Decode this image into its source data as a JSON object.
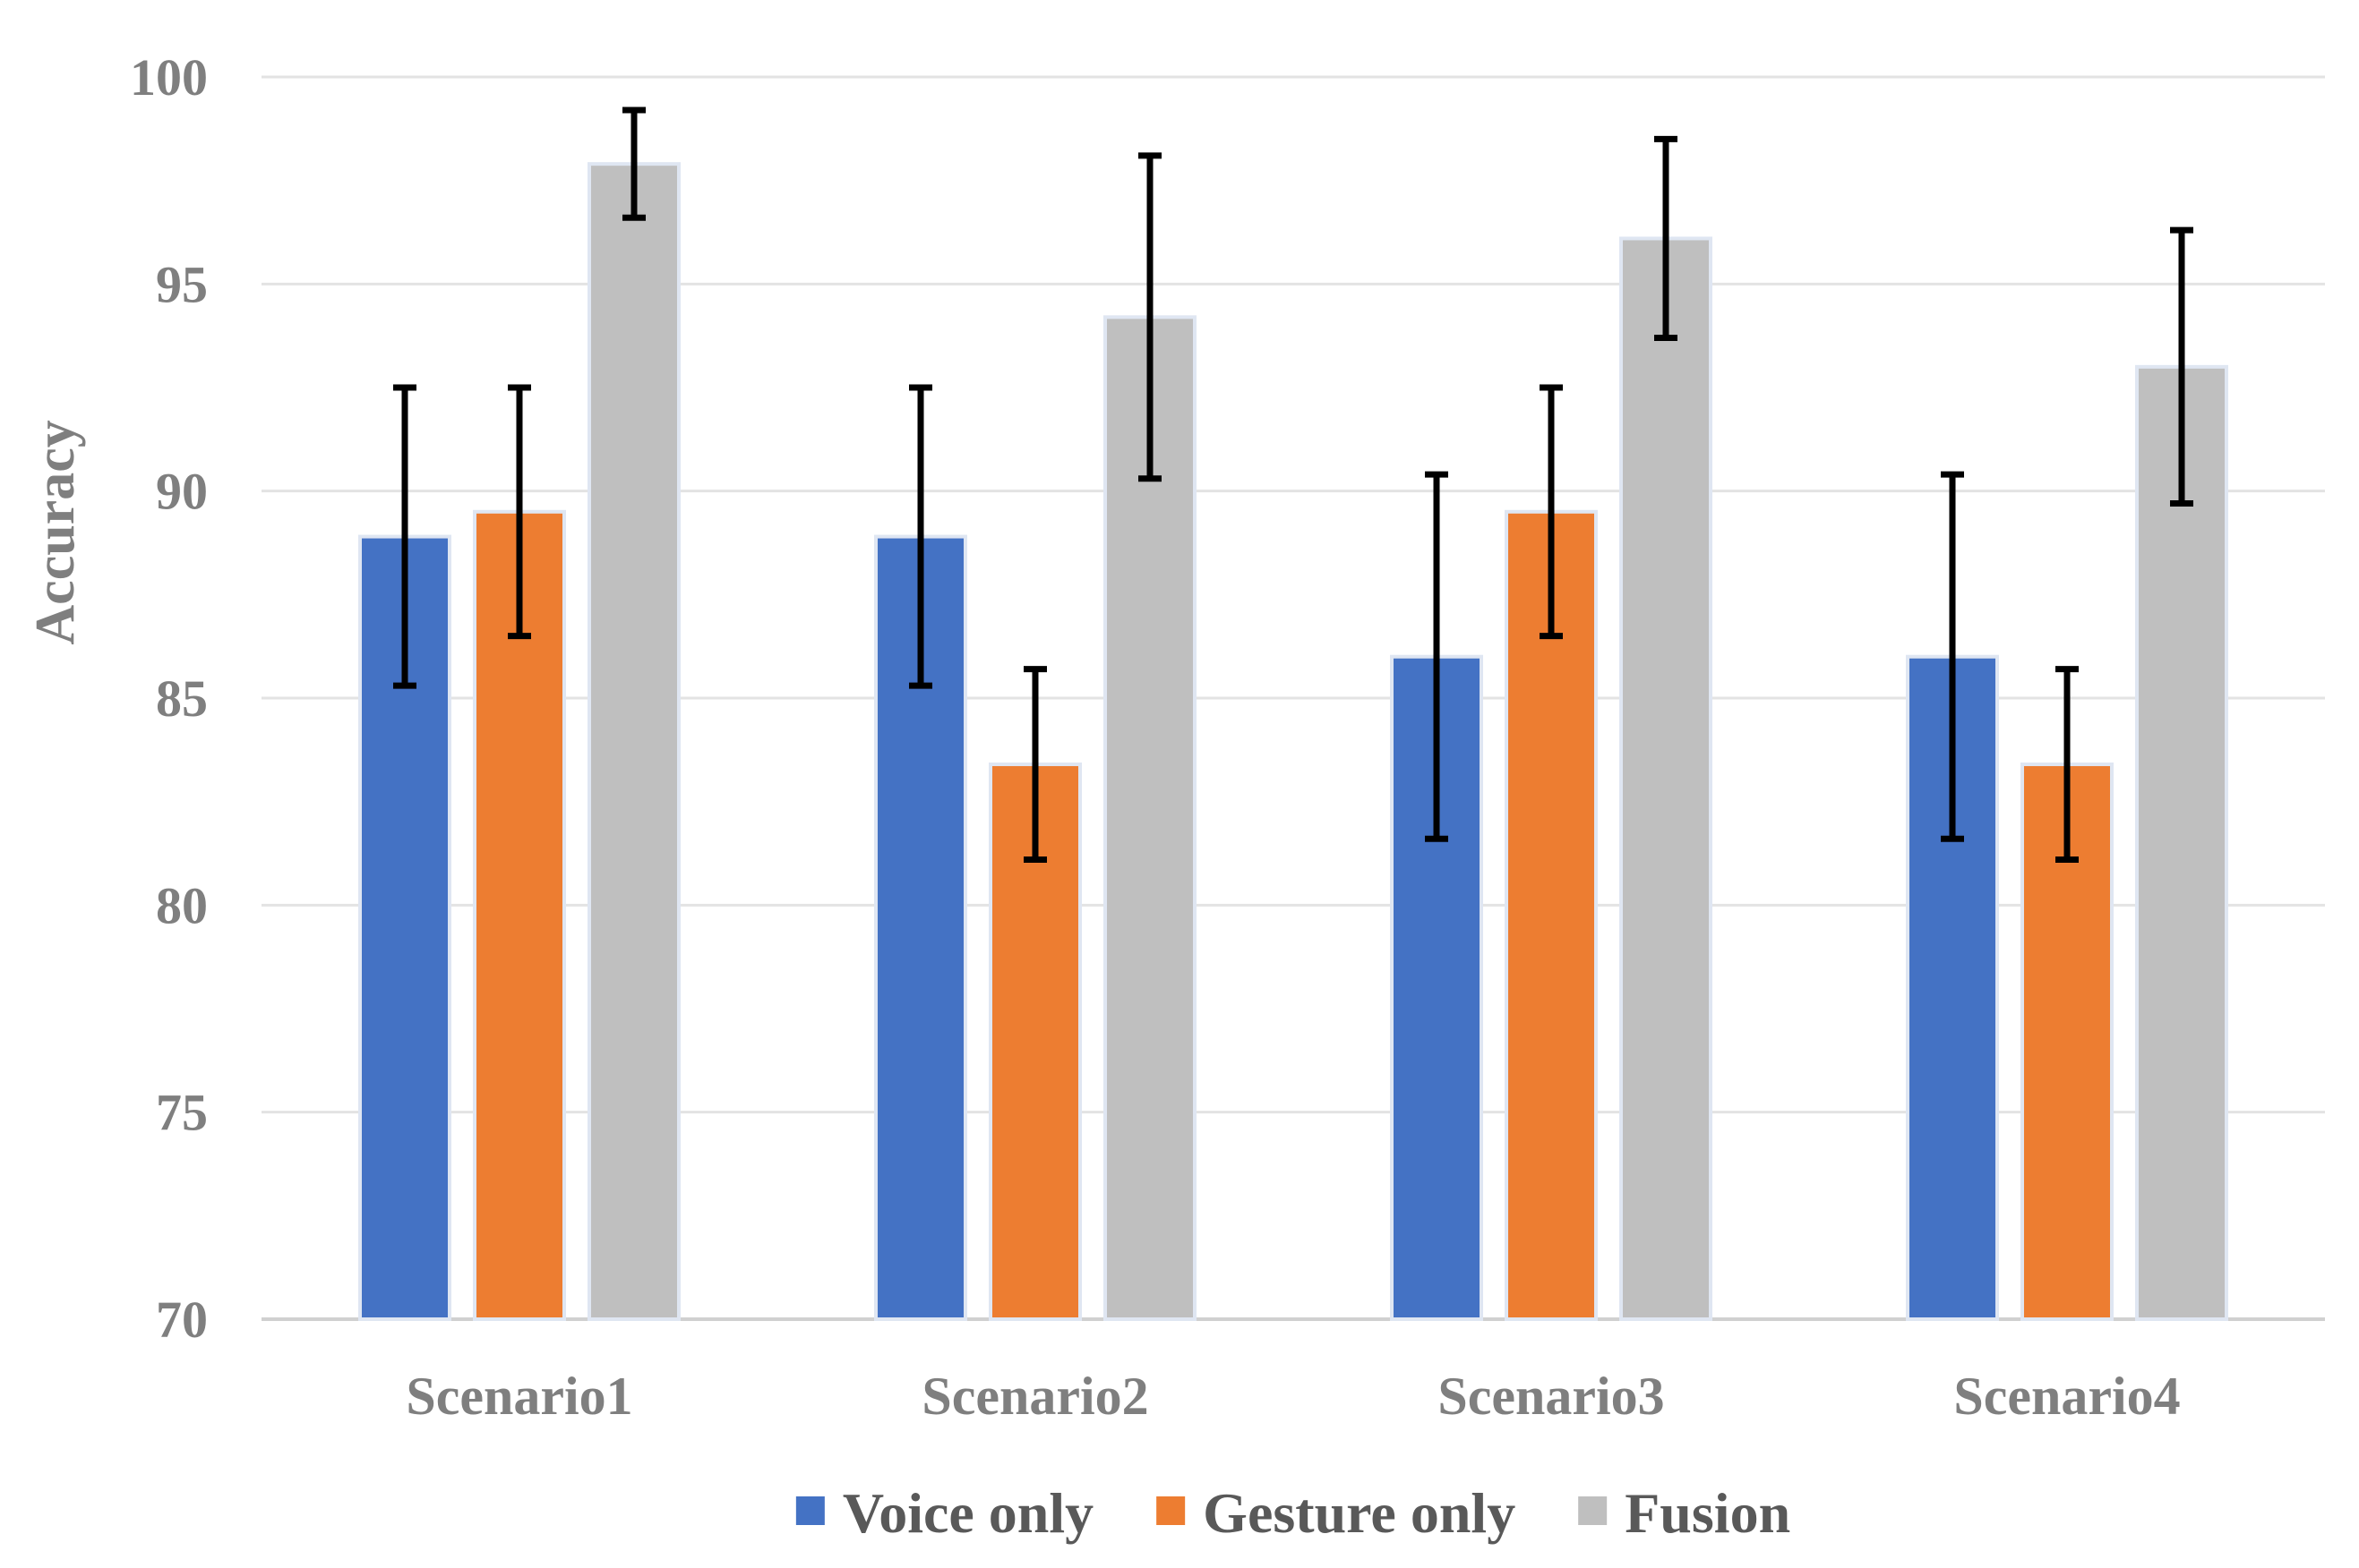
{
  "chart_data": {
    "type": "bar",
    "title": "",
    "xlabel": "",
    "ylabel": "Accuracy",
    "ylim": [
      70,
      100
    ],
    "yticks": [
      70,
      75,
      80,
      85,
      90,
      95,
      100
    ],
    "grid": true,
    "legend_position": "bottom",
    "categories": [
      "Scenario1",
      "Scenario2",
      "Scenario3",
      "Scenario4"
    ],
    "series": [
      {
        "name": "Voice only",
        "color": "#4472C4",
        "values": [
          88.9,
          88.9,
          86.0,
          86.0
        ],
        "error_low": [
          85.3,
          85.3,
          81.6,
          81.6
        ],
        "error_high": [
          92.5,
          92.5,
          90.4,
          90.4
        ]
      },
      {
        "name": "Gesture only",
        "color": "#ED7D31",
        "values": [
          89.5,
          83.4,
          89.5,
          83.4
        ],
        "error_low": [
          86.5,
          81.1,
          86.5,
          81.1
        ],
        "error_high": [
          92.5,
          85.7,
          92.5,
          85.7
        ]
      },
      {
        "name": "Fusion",
        "color": "#BFBFBF",
        "values": [
          97.9,
          94.2,
          96.1,
          93.0
        ],
        "error_low": [
          96.6,
          90.3,
          93.7,
          89.7
        ],
        "error_high": [
          99.2,
          98.1,
          98.5,
          96.3
        ]
      }
    ]
  }
}
